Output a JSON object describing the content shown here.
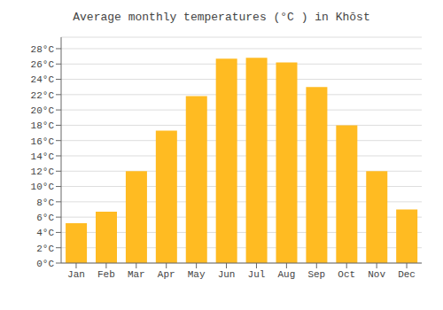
{
  "chart_data": {
    "type": "bar",
    "title": "Average monthly temperatures (°C ) in Khōst",
    "categories": [
      "Jan",
      "Feb",
      "Mar",
      "Apr",
      "May",
      "Jun",
      "Jul",
      "Aug",
      "Sep",
      "Oct",
      "Nov",
      "Dec"
    ],
    "values": [
      5.2,
      6.7,
      12.0,
      17.3,
      21.8,
      26.7,
      26.8,
      26.2,
      23.0,
      18.0,
      12.0,
      7.0
    ],
    "color": "#FFBB22",
    "ylim": [
      0,
      29.5
    ],
    "yticks": [
      {
        "value": 0,
        "label": "0°C"
      },
      {
        "value": 2,
        "label": "2°C"
      },
      {
        "value": 4,
        "label": "4°C"
      },
      {
        "value": 6,
        "label": "6°C"
      },
      {
        "value": 8,
        "label": "8°C"
      },
      {
        "value": 10,
        "label": "10°C"
      },
      {
        "value": 12,
        "label": "12°C"
      },
      {
        "value": 14,
        "label": "14°C"
      },
      {
        "value": 16,
        "label": "16°C"
      },
      {
        "value": 18,
        "label": "18°C"
      },
      {
        "value": 20,
        "label": "20°C"
      },
      {
        "value": 22,
        "label": "22°C"
      },
      {
        "value": 24,
        "label": "24°C"
      },
      {
        "value": 26,
        "label": "26°C"
      },
      {
        "value": 28,
        "label": "28°C"
      }
    ],
    "grid": true
  }
}
